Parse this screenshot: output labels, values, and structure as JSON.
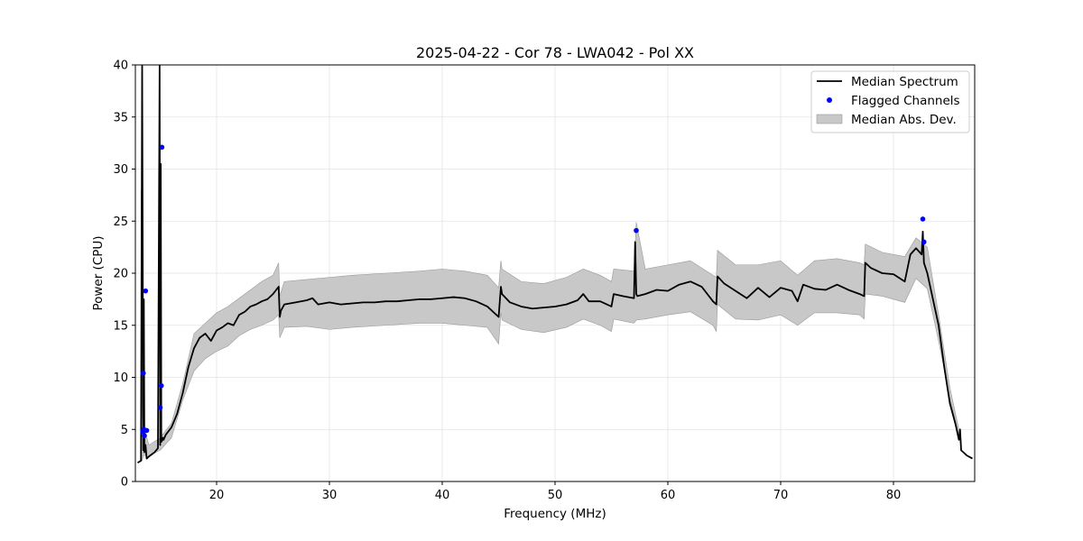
{
  "chart_data": {
    "type": "line",
    "title": "2025-04-22 - Cor 78 - LWA042 - Pol XX",
    "xlabel": "Frequency (MHz)",
    "ylabel": "Power (CPU)",
    "xlim": [
      12.8,
      87.2
    ],
    "ylim": [
      0,
      40
    ],
    "xticks": [
      20,
      30,
      40,
      50,
      60,
      70,
      80
    ],
    "yticks": [
      0,
      5,
      10,
      15,
      20,
      25,
      30,
      35,
      40
    ],
    "grid": true,
    "legend_position": "top-right",
    "colors": {
      "median": "#000000",
      "flagged": "#0000ff",
      "mad_fill": "#c8c8c8",
      "mad_edge": "#999999"
    },
    "series": [
      {
        "name": "Median Spectrum",
        "kind": "line",
        "x": [
          13.0,
          13.3,
          13.4,
          13.5,
          13.55,
          13.6,
          13.7,
          13.8,
          14.0,
          14.5,
          14.8,
          14.95,
          15.0,
          15.05,
          15.1,
          15.2,
          15.25,
          15.3,
          15.5,
          16.0,
          16.5,
          17.0,
          17.5,
          18.0,
          18.5,
          19.0,
          19.5,
          20.0,
          20.5,
          21.0,
          21.5,
          22.0,
          22.5,
          23.0,
          23.5,
          24.0,
          24.5,
          25.0,
          25.5,
          25.6,
          25.7,
          26.0,
          27.0,
          28.0,
          28.5,
          29.0,
          30.0,
          31.0,
          32.0,
          33.0,
          34.0,
          35.0,
          36.0,
          37.0,
          38.0,
          39.0,
          40.0,
          41.0,
          42.0,
          43.0,
          44.0,
          45.0,
          45.2,
          45.3,
          46.0,
          47.0,
          48.0,
          49.0,
          50.0,
          51.0,
          52.0,
          52.5,
          53.0,
          54.0,
          55.0,
          55.2,
          56.0,
          57.0,
          57.1,
          57.2,
          57.3,
          58.0,
          59.0,
          60.0,
          61.0,
          62.0,
          63.0,
          64.0,
          64.3,
          64.4,
          65.0,
          66.0,
          67.0,
          68.0,
          69.0,
          70.0,
          71.0,
          71.5,
          72.0,
          73.0,
          74.0,
          75.0,
          76.0,
          77.0,
          77.4,
          77.5,
          78.0,
          79.0,
          80.0,
          81.0,
          81.5,
          82.0,
          82.5,
          82.6,
          82.7,
          83.0,
          83.5,
          84.0,
          84.5,
          85.0,
          85.5,
          85.8,
          85.9,
          86.0,
          86.5,
          87.0
        ],
        "y": [
          1.8,
          2.0,
          40.0,
          3.0,
          17.5,
          2.8,
          3.5,
          2.2,
          2.4,
          2.8,
          3.2,
          40.0,
          3.5,
          30.5,
          3.8,
          4.0,
          4.2,
          4.0,
          4.5,
          5.2,
          6.5,
          8.5,
          11.0,
          12.8,
          13.8,
          14.2,
          13.5,
          14.5,
          14.8,
          15.2,
          15.0,
          16.0,
          16.3,
          16.8,
          17.0,
          17.3,
          17.5,
          18.0,
          18.7,
          15.8,
          16.4,
          17.0,
          17.2,
          17.4,
          17.6,
          17.0,
          17.2,
          17.0,
          17.1,
          17.2,
          17.2,
          17.3,
          17.3,
          17.4,
          17.5,
          17.5,
          17.6,
          17.7,
          17.6,
          17.3,
          16.8,
          15.8,
          18.7,
          18.0,
          17.2,
          16.8,
          16.6,
          16.7,
          16.8,
          17.0,
          17.4,
          18.0,
          17.3,
          17.3,
          16.8,
          18.0,
          17.8,
          17.6,
          23.0,
          18.0,
          17.8,
          18.0,
          18.4,
          18.3,
          18.9,
          19.2,
          18.7,
          17.3,
          17.0,
          19.7,
          19.0,
          18.3,
          17.6,
          18.6,
          17.7,
          18.6,
          18.3,
          17.3,
          18.9,
          18.5,
          18.4,
          18.9,
          18.4,
          18.0,
          17.8,
          21.0,
          20.5,
          20.0,
          19.9,
          19.2,
          21.8,
          22.4,
          21.8,
          24.0,
          21.0,
          20.0,
          17.5,
          15.0,
          11.0,
          7.5,
          5.5,
          4.0,
          5.0,
          3.0,
          2.5,
          2.2
        ]
      },
      {
        "name": "Flagged Channels",
        "kind": "scatter",
        "x": [
          13.45,
          13.5,
          13.55,
          13.6,
          13.7,
          13.8,
          15.0,
          15.1,
          15.15,
          57.2,
          82.6,
          82.7
        ],
        "y": [
          4.8,
          10.4,
          5.0,
          4.4,
          18.3,
          4.9,
          7.1,
          9.2,
          32.1,
          24.1,
          25.2,
          23.0
        ]
      },
      {
        "name": "Median Abs. Dev.",
        "kind": "fill_between",
        "x": [
          13.3,
          13.4,
          13.5,
          13.6,
          14.0,
          15.0,
          16.0,
          17.0,
          18.0,
          19.0,
          20.0,
          21.0,
          22.0,
          23.0,
          24.0,
          25.0,
          25.5,
          25.6,
          26.0,
          28.0,
          30.0,
          32.0,
          35.0,
          38.0,
          40.0,
          42.0,
          44.0,
          45.0,
          45.2,
          45.3,
          47.0,
          49.0,
          51.0,
          52.5,
          54.0,
          55.0,
          55.2,
          57.0,
          57.2,
          58.0,
          60.0,
          62.0,
          64.0,
          64.3,
          64.4,
          66.0,
          68.0,
          70.0,
          71.5,
          73.0,
          75.0,
          77.0,
          77.4,
          77.5,
          79.0,
          81.0,
          82.0,
          83.0,
          84.0,
          85.0,
          86.0
        ],
        "lower": [
          2.0,
          2.0,
          2.5,
          2.5,
          2.5,
          3.0,
          4.2,
          7.8,
          10.6,
          11.8,
          12.5,
          13.0,
          14.0,
          14.6,
          15.0,
          15.5,
          16.0,
          13.8,
          14.8,
          14.9,
          14.6,
          14.8,
          15.0,
          15.2,
          15.2,
          15.0,
          14.8,
          13.2,
          16.2,
          15.5,
          14.6,
          14.3,
          14.8,
          15.6,
          15.0,
          14.4,
          15.6,
          15.2,
          15.5,
          15.6,
          16.0,
          16.3,
          15.0,
          14.4,
          17.0,
          15.6,
          15.5,
          16.0,
          15.0,
          16.2,
          16.2,
          16.0,
          15.6,
          18.0,
          17.8,
          17.2,
          19.5,
          18.5,
          13.5,
          8.0,
          3.5
        ],
        "upper": [
          28.0,
          6.0,
          12.0,
          5.0,
          3.5,
          4.2,
          5.6,
          9.4,
          14.2,
          15.2,
          16.2,
          16.8,
          17.6,
          18.4,
          19.2,
          19.8,
          21.0,
          17.8,
          19.2,
          19.4,
          19.6,
          19.8,
          20.0,
          20.2,
          20.4,
          20.2,
          19.8,
          18.6,
          21.2,
          20.4,
          19.2,
          19.0,
          19.6,
          20.4,
          19.8,
          19.2,
          20.4,
          20.2,
          24.9,
          20.4,
          20.8,
          21.2,
          19.8,
          19.6,
          22.2,
          20.8,
          20.8,
          21.2,
          19.8,
          21.2,
          21.4,
          21.0,
          20.8,
          22.8,
          22.0,
          21.6,
          23.4,
          22.5,
          16.0,
          9.0,
          4.0
        ]
      }
    ]
  }
}
